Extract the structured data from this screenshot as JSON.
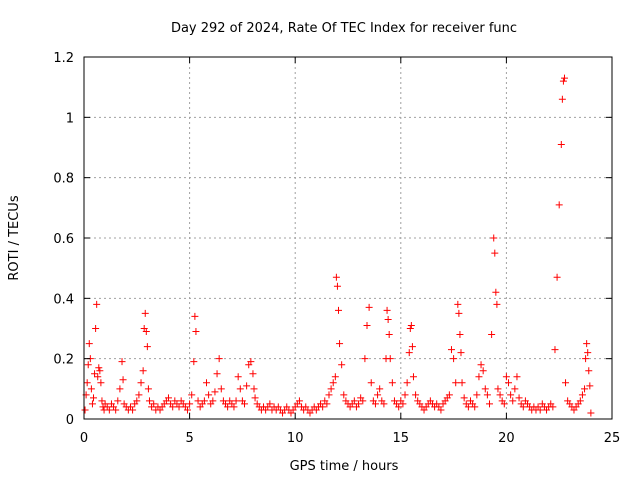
{
  "chart_data": {
    "type": "scatter",
    "title": "Day 292 of 2024, Rate Of TEC Index for receiver func",
    "xlabel": "GPS time / hours",
    "ylabel": "ROTI / TECUs",
    "xlim": [
      0,
      25
    ],
    "ylim": [
      0,
      1.2
    ],
    "x_ticks": [
      "0",
      "5",
      "10",
      "15",
      "20",
      "25"
    ],
    "y_ticks": [
      "0",
      "0.2",
      "0.4",
      "0.6",
      "0.8",
      "1",
      "1.2"
    ],
    "grid": true,
    "marker": "+",
    "color": "#ff0000",
    "series": [
      {
        "name": "ROTI",
        "x": [
          0.05,
          0.1,
          0.15,
          0.2,
          0.25,
          0.3,
          0.35,
          0.4,
          0.45,
          0.5,
          0.55,
          0.6,
          0.65,
          0.7,
          0.75,
          0.8,
          0.85,
          0.9,
          0.95,
          1.0,
          1.1,
          1.2,
          1.3,
          1.4,
          1.5,
          1.6,
          1.7,
          1.8,
          1.85,
          1.9,
          2.0,
          2.1,
          2.2,
          2.3,
          2.4,
          2.5,
          2.6,
          2.7,
          2.8,
          2.85,
          2.9,
          2.95,
          3.0,
          3.05,
          3.1,
          3.2,
          3.3,
          3.4,
          3.5,
          3.6,
          3.7,
          3.8,
          3.9,
          4.0,
          4.1,
          4.2,
          4.3,
          4.4,
          4.5,
          4.6,
          4.7,
          4.8,
          4.9,
          5.0,
          5.1,
          5.2,
          5.25,
          5.3,
          5.4,
          5.5,
          5.6,
          5.7,
          5.8,
          5.9,
          6.0,
          6.1,
          6.2,
          6.3,
          6.4,
          6.5,
          6.6,
          6.7,
          6.8,
          6.9,
          7.0,
          7.1,
          7.2,
          7.3,
          7.4,
          7.5,
          7.6,
          7.7,
          7.8,
          7.9,
          8.0,
          8.05,
          8.1,
          8.2,
          8.3,
          8.4,
          8.5,
          8.6,
          8.7,
          8.8,
          8.9,
          9.0,
          9.1,
          9.2,
          9.3,
          9.4,
          9.5,
          9.6,
          9.7,
          9.8,
          9.9,
          10.0,
          10.1,
          10.2,
          10.3,
          10.4,
          10.5,
          10.6,
          10.7,
          10.8,
          10.9,
          11.0,
          11.1,
          11.2,
          11.3,
          11.4,
          11.5,
          11.6,
          11.7,
          11.8,
          11.9,
          11.95,
          12.0,
          12.05,
          12.1,
          12.2,
          12.3,
          12.4,
          12.5,
          12.6,
          12.7,
          12.8,
          12.9,
          13.0,
          13.1,
          13.2,
          13.3,
          13.4,
          13.5,
          13.6,
          13.7,
          13.8,
          13.9,
          14.0,
          14.1,
          14.2,
          14.3,
          14.35,
          14.4,
          14.45,
          14.5,
          14.6,
          14.7,
          14.8,
          14.9,
          15.0,
          15.1,
          15.2,
          15.3,
          15.4,
          15.45,
          15.5,
          15.55,
          15.6,
          15.7,
          15.8,
          15.9,
          16.0,
          16.1,
          16.2,
          16.3,
          16.4,
          16.5,
          16.6,
          16.7,
          16.8,
          16.9,
          17.0,
          17.1,
          17.2,
          17.3,
          17.4,
          17.5,
          17.6,
          17.7,
          17.75,
          17.8,
          17.85,
          17.9,
          18.0,
          18.1,
          18.2,
          18.3,
          18.4,
          18.5,
          18.6,
          18.7,
          18.8,
          18.9,
          19.0,
          19.1,
          19.2,
          19.3,
          19.4,
          19.45,
          19.5,
          19.55,
          19.6,
          19.7,
          19.8,
          19.9,
          20.0,
          20.1,
          20.2,
          20.3,
          20.4,
          20.5,
          20.6,
          20.7,
          20.8,
          20.9,
          21.0,
          21.1,
          21.2,
          21.3,
          21.4,
          21.5,
          21.6,
          21.7,
          21.8,
          21.9,
          22.0,
          22.1,
          22.2,
          22.3,
          22.4,
          22.5,
          22.6,
          22.65,
          22.7,
          22.75,
          22.8,
          22.9,
          23.0,
          23.1,
          23.2,
          23.3,
          23.4,
          23.5,
          23.6,
          23.7,
          23.75,
          23.8,
          23.85,
          23.9,
          23.95,
          24.0
        ],
        "y": [
          0.03,
          0.08,
          0.12,
          0.18,
          0.25,
          0.2,
          0.1,
          0.05,
          0.07,
          0.15,
          0.3,
          0.38,
          0.14,
          0.17,
          0.16,
          0.12,
          0.06,
          0.04,
          0.03,
          0.05,
          0.04,
          0.03,
          0.05,
          0.04,
          0.03,
          0.06,
          0.1,
          0.19,
          0.13,
          0.05,
          0.04,
          0.03,
          0.04,
          0.03,
          0.05,
          0.06,
          0.08,
          0.12,
          0.16,
          0.3,
          0.35,
          0.29,
          0.24,
          0.1,
          0.06,
          0.04,
          0.05,
          0.03,
          0.04,
          0.03,
          0.04,
          0.05,
          0.06,
          0.07,
          0.05,
          0.04,
          0.06,
          0.05,
          0.04,
          0.06,
          0.05,
          0.04,
          0.03,
          0.05,
          0.08,
          0.19,
          0.34,
          0.29,
          0.06,
          0.04,
          0.05,
          0.06,
          0.12,
          0.08,
          0.05,
          0.06,
          0.09,
          0.15,
          0.2,
          0.1,
          0.06,
          0.05,
          0.04,
          0.06,
          0.05,
          0.04,
          0.06,
          0.14,
          0.1,
          0.06,
          0.05,
          0.11,
          0.18,
          0.19,
          0.15,
          0.1,
          0.07,
          0.05,
          0.04,
          0.03,
          0.04,
          0.03,
          0.04,
          0.05,
          0.03,
          0.04,
          0.03,
          0.04,
          0.03,
          0.02,
          0.03,
          0.04,
          0.03,
          0.02,
          0.03,
          0.04,
          0.05,
          0.06,
          0.04,
          0.03,
          0.04,
          0.03,
          0.02,
          0.03,
          0.04,
          0.03,
          0.04,
          0.05,
          0.04,
          0.06,
          0.05,
          0.08,
          0.1,
          0.12,
          0.14,
          0.47,
          0.44,
          0.36,
          0.25,
          0.18,
          0.08,
          0.06,
          0.05,
          0.04,
          0.05,
          0.06,
          0.04,
          0.05,
          0.07,
          0.06,
          0.2,
          0.31,
          0.37,
          0.12,
          0.06,
          0.05,
          0.08,
          0.1,
          0.06,
          0.05,
          0.2,
          0.36,
          0.33,
          0.28,
          0.2,
          0.12,
          0.06,
          0.05,
          0.04,
          0.06,
          0.05,
          0.08,
          0.12,
          0.22,
          0.3,
          0.31,
          0.24,
          0.14,
          0.08,
          0.06,
          0.05,
          0.04,
          0.03,
          0.04,
          0.05,
          0.06,
          0.05,
          0.04,
          0.05,
          0.04,
          0.03,
          0.05,
          0.06,
          0.07,
          0.08,
          0.23,
          0.2,
          0.12,
          0.38,
          0.35,
          0.28,
          0.22,
          0.12,
          0.07,
          0.05,
          0.04,
          0.06,
          0.05,
          0.04,
          0.08,
          0.14,
          0.18,
          0.16,
          0.1,
          0.08,
          0.05,
          0.28,
          0.6,
          0.55,
          0.42,
          0.38,
          0.1,
          0.08,
          0.06,
          0.05,
          0.14,
          0.12,
          0.08,
          0.06,
          0.1,
          0.14,
          0.07,
          0.05,
          0.04,
          0.06,
          0.05,
          0.04,
          0.03,
          0.04,
          0.03,
          0.04,
          0.03,
          0.05,
          0.04,
          0.03,
          0.04,
          0.05,
          0.04,
          0.23,
          0.47,
          0.71,
          0.91,
          1.06,
          1.12,
          1.13,
          0.12,
          0.06,
          0.05,
          0.04,
          0.03,
          0.04,
          0.05,
          0.06,
          0.08,
          0.1,
          0.2,
          0.25,
          0.22,
          0.16,
          0.11,
          0.02
        ]
      }
    ]
  }
}
